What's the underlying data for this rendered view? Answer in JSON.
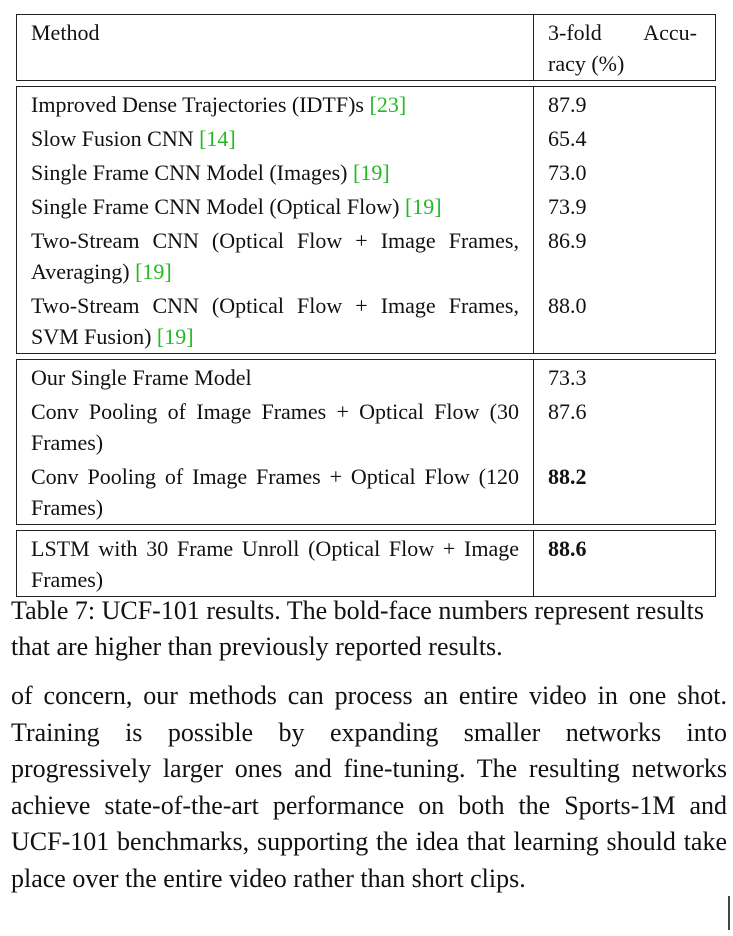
{
  "table": {
    "header": {
      "method": "Method",
      "accuracy_line1_a": "3-fold",
      "accuracy_line1_b": "Accu-",
      "accuracy_line2": "racy (%)"
    },
    "blocks": [
      [
        {
          "method": "Improved Dense Trajectories (IDTF)s ",
          "cite": "[23]",
          "accuracy": "87.9",
          "bold": false
        },
        {
          "method": "Slow Fusion CNN ",
          "cite": "[14]",
          "accuracy": "65.4",
          "bold": false
        },
        {
          "method": "Single Frame CNN Model (Images) ",
          "cite": "[19]",
          "accuracy": "73.0",
          "bold": false
        },
        {
          "method": "Single Frame CNN Model (Optical Flow) ",
          "cite": "[19]",
          "accuracy": "73.9",
          "bold": false
        },
        {
          "method": "Two-Stream CNN (Optical Flow + Image Frames, Averaging) ",
          "cite": "[19]",
          "accuracy": "86.9",
          "bold": false
        },
        {
          "method": "Two-Stream CNN (Optical Flow + Image Frames, SVM Fusion) ",
          "cite": "[19]",
          "accuracy": "88.0",
          "bold": false
        }
      ],
      [
        {
          "method": "Our Single Frame Model",
          "cite": "",
          "accuracy": "73.3",
          "bold": false
        },
        {
          "method": "Conv Pooling of Image Frames + Optical Flow (30 Frames)",
          "cite": "",
          "accuracy": "87.6",
          "bold": false
        },
        {
          "method": "Conv Pooling of Image Frames + Optical Flow (120 Frames)",
          "cite": "",
          "accuracy": "88.2",
          "bold": true
        }
      ],
      [
        {
          "method": "LSTM with 30 Frame Unroll (Optical Flow + Image Frames)",
          "cite": "",
          "accuracy": "88.6",
          "bold": true
        }
      ]
    ]
  },
  "caption": "Table 7: UCF-101 results. The bold-face numbers represent results that are higher than previously reported results.",
  "body_text": "of concern, our methods can process an entire video in one shot. Training is possible by expanding smaller networks into progressively larger ones and fine-tuning. The resulting networks achieve state-of-the-art performance on both the Sports-1M and UCF-101 benchmarks, supporting the idea that learning should take place over the entire video rather than short clips."
}
